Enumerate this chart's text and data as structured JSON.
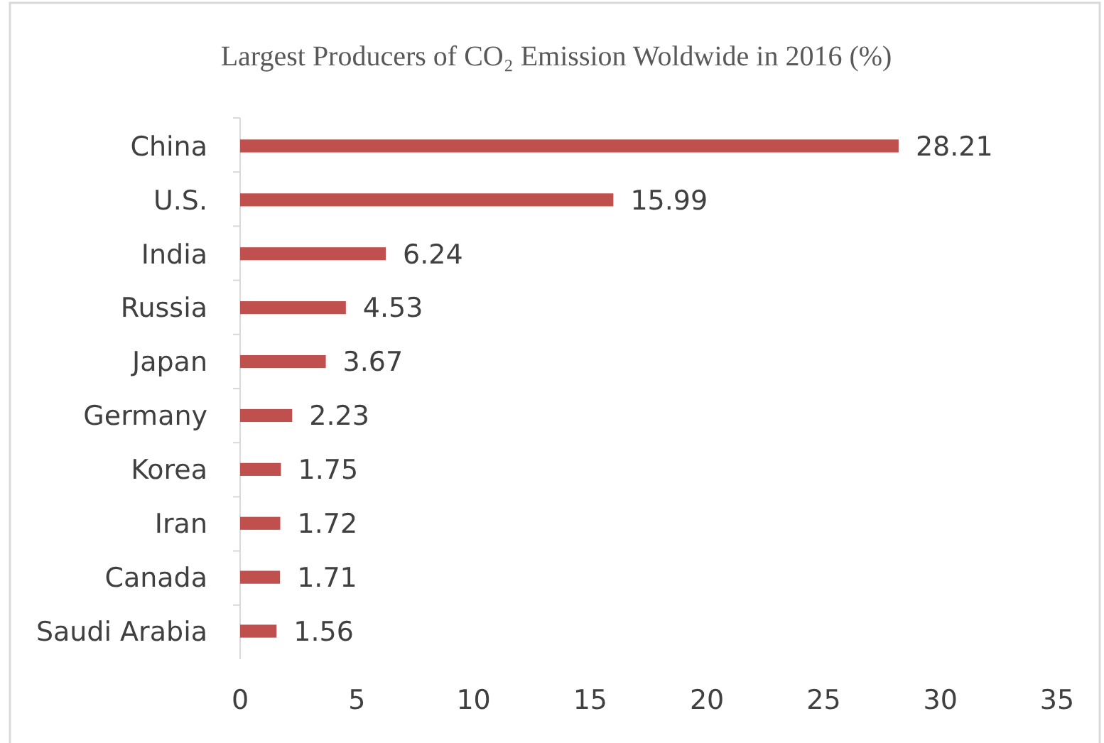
{
  "chart_data": {
    "type": "bar",
    "orientation": "horizontal",
    "title": "Largest Producers of CO₂ Emission Woldwide in 2016 (%)",
    "categories": [
      "China",
      "U.S.",
      "India",
      "Russia",
      "Japan",
      "Germany",
      "Korea",
      "Iran",
      "Canada",
      "Saudi Arabia"
    ],
    "values": [
      28.21,
      15.99,
      6.24,
      4.53,
      3.67,
      2.23,
      1.75,
      1.72,
      1.71,
      1.56
    ],
    "color": "#c0504d",
    "xlim": [
      0,
      35
    ],
    "xticks": [
      0,
      5,
      10,
      15,
      20,
      25,
      30,
      35
    ],
    "grid": false,
    "data_labels": true
  }
}
